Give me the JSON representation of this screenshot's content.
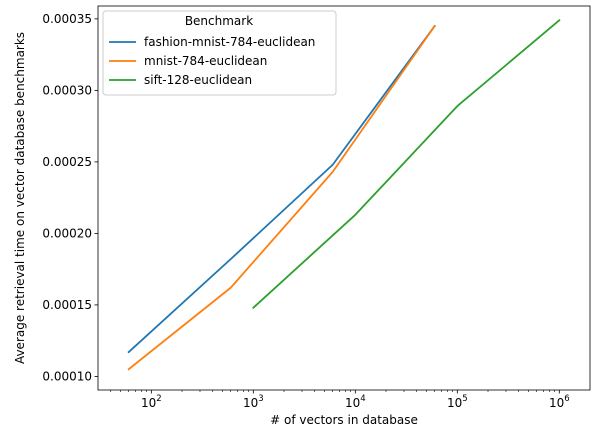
{
  "chart_data": {
    "type": "line",
    "xlabel": "# of vectors in database",
    "ylabel": "Average retrieval time on vector database benchmarks",
    "xscale": "log",
    "xlim": [
      30,
      2000000
    ],
    "ylim": [
      9.05e-05,
      0.000359
    ],
    "x_ticks": [
      {
        "value": 100,
        "base": "10",
        "exp": "2"
      },
      {
        "value": 1000,
        "base": "10",
        "exp": "3"
      },
      {
        "value": 10000,
        "base": "10",
        "exp": "4"
      },
      {
        "value": 100000,
        "base": "10",
        "exp": "5"
      },
      {
        "value": 1000000,
        "base": "10",
        "exp": "6"
      }
    ],
    "y_ticks": [
      {
        "value": 0.0001,
        "label": "0.00010"
      },
      {
        "value": 0.00015,
        "label": "0.00015"
      },
      {
        "value": 0.0002,
        "label": "0.00020"
      },
      {
        "value": 0.00025,
        "label": "0.00025"
      },
      {
        "value": 0.0003,
        "label": "0.00030"
      },
      {
        "value": 0.00035,
        "label": "0.00035"
      }
    ],
    "grid": false,
    "legend": {
      "title": "Benchmark",
      "position": "top-left"
    },
    "series": [
      {
        "name": "fashion-mnist-784-euclidean",
        "color": "#1f77b4",
        "x": [
          60,
          600,
          6000,
          60000
        ],
        "y": [
          0.000117,
          0.000182,
          0.000248,
          0.000345
        ]
      },
      {
        "name": "mnist-784-euclidean",
        "color": "#ff7f0e",
        "x": [
          60,
          600,
          6000,
          60000
        ],
        "y": [
          0.000105,
          0.000162,
          0.000243,
          0.000345
        ]
      },
      {
        "name": "sift-128-euclidean",
        "color": "#2ca02c",
        "x": [
          1000,
          10000,
          100000,
          1000000
        ],
        "y": [
          0.000148,
          0.000213,
          0.000289,
          0.000349
        ]
      }
    ]
  }
}
